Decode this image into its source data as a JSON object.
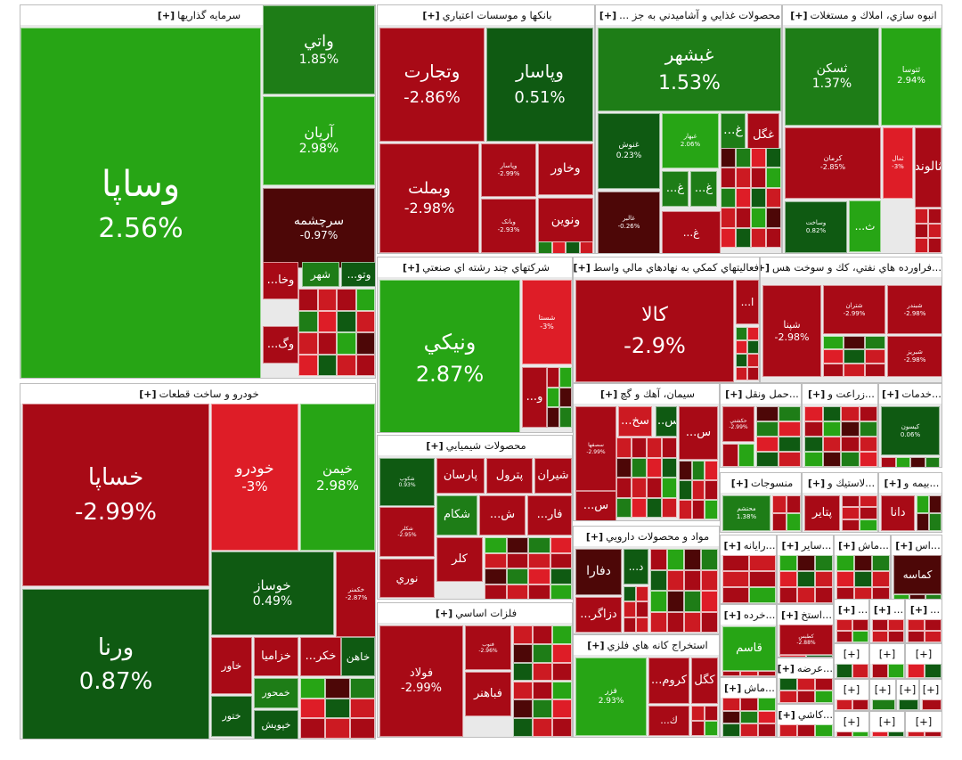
{
  "colors": {
    "dg": "#0f5a12",
    "g": "#1e7d17",
    "lg": "#27a515",
    "dr": "#a80a16",
    "r": "#cc1a22",
    "lr": "#de1d27",
    "vdr": "#4d0707",
    "mr": "#bd1a21"
  },
  "chart_data": {
    "type": "treemap",
    "sectors": [
      {
        "label": "سرمايه گذاريها",
        "prefix": "[+]",
        "tiles": [
          {
            "name": "وساپا",
            "change": "2.56%",
            "c": "lg"
          },
          {
            "name": "واتي",
            "change": "1.85%",
            "c": "g"
          },
          {
            "name": "آريان",
            "change": "2.98%",
            "c": "lg"
          },
          {
            "name": "سرچشمه",
            "change": "-0.97%",
            "c": "vdr"
          },
          {
            "name": "...وخا",
            "c": "dr"
          },
          {
            "name": "...وگ",
            "c": "dr"
          },
          {
            "name": "شهر",
            "c": "g"
          },
          {
            "name": "...وتو",
            "c": "dg"
          }
        ]
      },
      {
        "label": "بانكها و موسسات اعتباري",
        "prefix": "[+]",
        "tiles": [
          {
            "name": "وتجارت",
            "change": "-2.86%",
            "c": "dr"
          },
          {
            "name": "وپاسار",
            "change": "0.51%",
            "c": "dg"
          },
          {
            "name": "وبملت",
            "change": "-2.98%",
            "c": "dr"
          },
          {
            "name": "وپاسار",
            "change": "-2.99%",
            "c": "dr"
          },
          {
            "name": "وخاور",
            "c": "dr"
          },
          {
            "name": "ونوين",
            "c": "dr"
          },
          {
            "name": "وبانک",
            "change": "-2.93%",
            "c": "dr"
          }
        ]
      },
      {
        "label": "محصولات غذايي و آشاميدني به جز ...",
        "prefix": "[+]",
        "tiles": [
          {
            "name": "غبشهر",
            "change": "1.53%",
            "c": "g"
          },
          {
            "name": "غنوش",
            "change": "0.23%",
            "c": "dg"
          },
          {
            "name": "غبهار",
            "change": "2.06%",
            "c": "lg"
          },
          {
            "name": "...غ",
            "c": "g"
          },
          {
            "name": "غگل",
            "c": "dr"
          },
          {
            "name": "...غ",
            "c": "g"
          },
          {
            "name": "...غ",
            "c": "g"
          },
          {
            "name": "غالبر",
            "change": "-0.26%",
            "c": "vdr"
          },
          {
            "name": "...غ",
            "c": "dr"
          }
        ]
      },
      {
        "label": "انبوه سازي، املاك و مستغلات",
        "prefix": "[+]",
        "tiles": [
          {
            "name": "ثسكن",
            "change": "1.37%",
            "c": "g"
          },
          {
            "name": "ثتوسا",
            "change": "2.94%",
            "c": "lg"
          },
          {
            "name": "كرمان",
            "change": "-2.85%",
            "c": "dr"
          },
          {
            "name": "ثمال",
            "change": "-3%",
            "c": "lr"
          },
          {
            "name": "ثالوند",
            "c": "dr"
          },
          {
            "name": "وساخت",
            "change": "0.82%",
            "c": "dg"
          },
          {
            "name": "...ث",
            "c": "lg"
          }
        ]
      },
      {
        "label": "شركتهاي چند رشته اي صنعتي",
        "prefix": "[+]",
        "tiles": [
          {
            "name": "ونيكي",
            "change": "2.87%",
            "c": "lg"
          },
          {
            "name": "شستا",
            "change": "-3%",
            "c": "lr"
          },
          {
            "name": "...و",
            "c": "dr"
          }
        ]
      },
      {
        "label": "فعاليتهاي كمكي به نهادهاي مالي واسط",
        "prefix": "[+]",
        "tiles": [
          {
            "name": "كالا",
            "change": "-2.9%",
            "c": "dr"
          },
          {
            "name": "...ا",
            "c": "dr"
          }
        ]
      },
      {
        "label": "...فراورده هاي نفتي، كك و سوخت هس",
        "prefix": "[+]",
        "tiles": [
          {
            "name": "شپنا",
            "change": "-2.98%",
            "c": "dr"
          },
          {
            "name": "شتران",
            "change": "-2.99%",
            "c": "dr"
          },
          {
            "name": "شبندر",
            "change": "-2.98%",
            "c": "dr"
          },
          {
            "name": "شبريز",
            "change": "-2.98%",
            "c": "dr"
          }
        ]
      },
      {
        "label": "خودرو و ساخت قطعات",
        "prefix": "[+]",
        "tiles": [
          {
            "name": "خساپا",
            "change": "-2.99%",
            "c": "dr"
          },
          {
            "name": "خودرو",
            "change": "-3%",
            "c": "lr"
          },
          {
            "name": "خيمن",
            "change": "2.98%",
            "c": "lg"
          },
          {
            "name": "ورنا",
            "change": "0.87%",
            "c": "dg"
          },
          {
            "name": "خوساز",
            "change": "0.49%",
            "c": "dg"
          },
          {
            "name": "خكمنر",
            "change": "-2.87%",
            "c": "dr"
          },
          {
            "name": "خاور",
            "c": "dr"
          },
          {
            "name": "خزاميا",
            "c": "dr"
          },
          {
            "name": "...خكر",
            "c": "dr"
          },
          {
            "name": "خاهن",
            "c": "dg"
          },
          {
            "name": "خمحور",
            "c": "g"
          },
          {
            "name": "ختور",
            "c": "dg"
          },
          {
            "name": "خپويش",
            "c": "dg"
          }
        ]
      },
      {
        "label": "محصولات شيميايي",
        "prefix": "[+]",
        "tiles": [
          {
            "name": "شکوپ",
            "change": "0.93%",
            "c": "dg"
          },
          {
            "name": "پارسان",
            "c": "dr"
          },
          {
            "name": "پترول",
            "c": "dr"
          },
          {
            "name": "شيران",
            "c": "dr"
          },
          {
            "name": "شكلر",
            "change": "-2.95%",
            "c": "dr"
          },
          {
            "name": "شكام",
            "c": "g"
          },
          {
            "name": "...ش",
            "c": "dr"
          },
          {
            "name": "...فار",
            "c": "dr"
          },
          {
            "name": "كلر",
            "c": "dr"
          },
          {
            "name": "نوري",
            "c": "dr"
          }
        ]
      },
      {
        "label": "سيمان، آهك و گچ",
        "prefix": "[+]",
        "tiles": [
          {
            "name": "سصفها",
            "change": "-2.99%",
            "c": "dr"
          },
          {
            "name": "...سخ",
            "c": "r"
          },
          {
            "name": "...س",
            "c": "dg"
          },
          {
            "name": "...س",
            "c": "dr"
          },
          {
            "name": "...س",
            "c": "dr"
          }
        ]
      },
      {
        "label": "...حمل ونقل",
        "prefix": "[+]",
        "tiles": [
          {
            "name": "حكشتي",
            "change": "-2.99%",
            "c": "dr"
          }
        ]
      },
      {
        "label": "...زراعت و",
        "prefix": "[+]",
        "tiles": []
      },
      {
        "label": "...خدمات",
        "prefix": "[+]",
        "tiles": [
          {
            "name": "كيسون",
            "change": "0.06%",
            "c": "dg"
          }
        ]
      },
      {
        "label": "منسوجات",
        "prefix": "[+]",
        "tiles": [
          {
            "name": "محتشم",
            "change": "1.38%",
            "c": "g"
          }
        ]
      },
      {
        "label": "...لاستيك و",
        "prefix": "[+]",
        "tiles": [
          {
            "name": "پتاير",
            "c": "dr"
          }
        ]
      },
      {
        "label": "...بيمه و",
        "prefix": "[+]",
        "tiles": [
          {
            "name": "دانا",
            "c": "dr"
          }
        ]
      },
      {
        "label": "مواد و محصولات دارويي",
        "prefix": "[+]",
        "tiles": [
          {
            "name": "دفارا",
            "c": "vdr"
          },
          {
            "name": "...د",
            "c": "dg"
          },
          {
            "name": "...دزاگر",
            "c": "dr"
          }
        ]
      },
      {
        "label": "فلزات اساسي",
        "prefix": "[+]",
        "tiles": [
          {
            "name": "فولاد",
            "change": "-2.99%",
            "c": "dr"
          },
          {
            "name": "فنوب",
            "change": "-2.96%",
            "c": "dr"
          },
          {
            "name": "فباهنر",
            "c": "dr"
          }
        ]
      },
      {
        "label": "استخراج كانه هاي فلزي",
        "prefix": "[+]",
        "tiles": [
          {
            "name": "فزر",
            "change": "2.93%",
            "c": "lg"
          },
          {
            "name": "...كروم",
            "c": "dr"
          },
          {
            "name": "كگل",
            "c": "dr"
          },
          {
            "name": "...ك",
            "c": "dr"
          }
        ]
      },
      {
        "label": "...رايانه",
        "prefix": "[+]",
        "tiles": []
      },
      {
        "label": "...ساير",
        "prefix": "[+]",
        "tiles": []
      },
      {
        "label": "...ماش",
        "prefix": "[+]",
        "tiles": []
      },
      {
        "label": "...اس",
        "prefix": "[+]",
        "tiles": [
          {
            "name": "كماسه",
            "c": "vdr"
          }
        ]
      },
      {
        "label": "...خرده",
        "prefix": "[+]",
        "tiles": [
          {
            "name": "قاسم",
            "c": "lg"
          }
        ]
      },
      {
        "label": "...استخ",
        "prefix": "[+]",
        "tiles": [
          {
            "name": "كطبس",
            "change": "-2.88%",
            "c": "dr"
          }
        ]
      },
      {
        "label": "...",
        "prefix": "[+]",
        "tiles": []
      },
      {
        "label": "...",
        "prefix": "[+]",
        "tiles": []
      },
      {
        "label": "...",
        "prefix": "[+]",
        "tiles": []
      },
      {
        "label": "...عرضه",
        "prefix": "[+]",
        "tiles": []
      },
      {
        "label": "...ماش",
        "prefix": "[+]",
        "tiles": []
      },
      {
        "label": "...كاشي",
        "prefix": "[+]",
        "tiles": []
      },
      {
        "label": "[+]",
        "prefix": "",
        "tiles": []
      },
      {
        "label": "[+]",
        "prefix": "",
        "tiles": []
      },
      {
        "label": "[+]",
        "prefix": "",
        "tiles": []
      },
      {
        "label": "[+]",
        "prefix": "",
        "tiles": []
      },
      {
        "label": "[+]",
        "prefix": "",
        "tiles": []
      },
      {
        "label": "[+]",
        "prefix": "",
        "tiles": []
      },
      {
        "label": "[+]",
        "prefix": "",
        "tiles": []
      },
      {
        "label": "[+]",
        "prefix": "",
        "tiles": []
      },
      {
        "label": "[+]",
        "prefix": "",
        "tiles": []
      },
      {
        "label": "[+]",
        "prefix": "",
        "tiles": []
      }
    ]
  }
}
